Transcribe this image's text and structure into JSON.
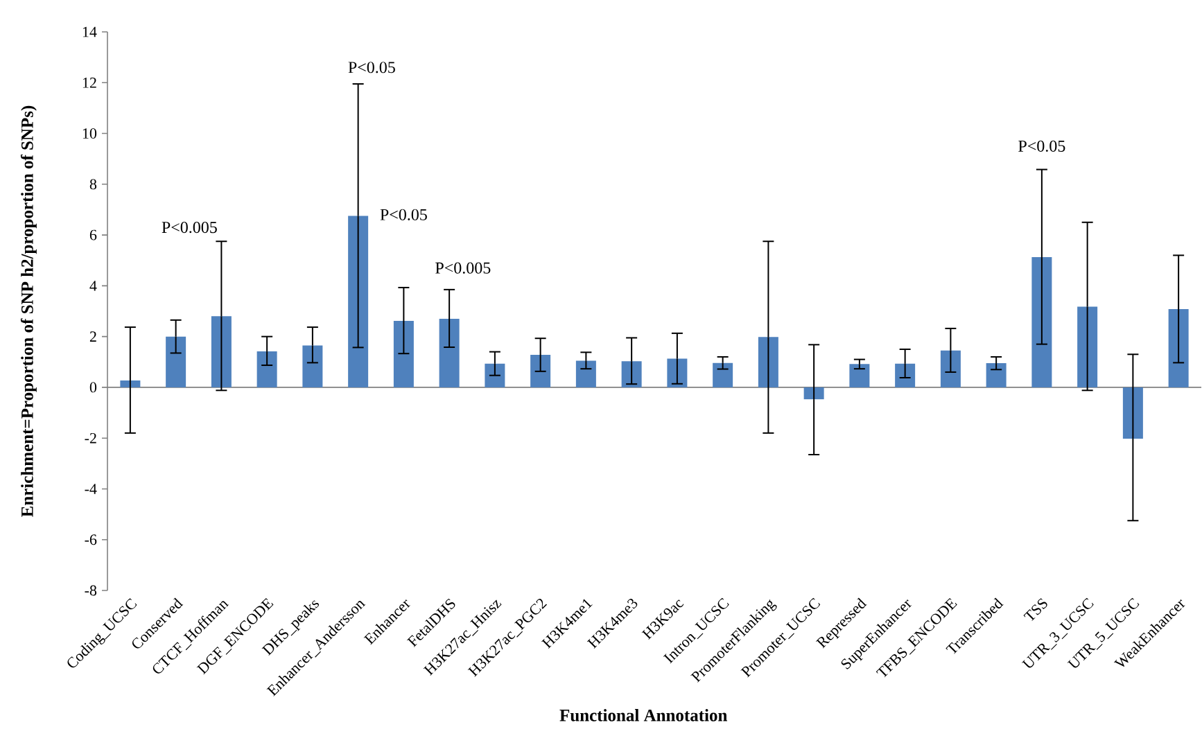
{
  "chart_data": {
    "type": "bar",
    "xlabel": "Functional Annotation",
    "ylabel": "Enrichment=Proportion of SNP h2/proportion of SNPs)",
    "categories": [
      "Coding_UCSC",
      "Conserved",
      "CTCF_Hoffman",
      "DGF_ENCODE",
      "DHS_peaks",
      "Enhancer_Andersson",
      "Enhancer",
      "FetalDHS",
      "H3K27ac_Hnisz",
      "H3K27ac_PGC2",
      "H3K4me1",
      "H3K4me3",
      "H3K9ac",
      "Intron_UCSC",
      "PromoterFlanking",
      "Promoter_UCSC",
      "Repressed",
      "SuperEnhancer",
      "TFBS_ENCODE",
      "Transcribed",
      "TSS",
      "UTR_3_UCSC",
      "UTR_5_UCSC",
      "WeakEnhancer"
    ],
    "values": [
      0.27,
      2.0,
      2.8,
      1.42,
      1.65,
      6.75,
      2.62,
      2.7,
      0.93,
      1.28,
      1.05,
      1.03,
      1.13,
      0.96,
      1.98,
      -0.47,
      0.92,
      0.93,
      1.45,
      0.95,
      5.13,
      3.18,
      -2.02,
      3.08
    ],
    "errors": [
      [
        -1.8,
        2.37
      ],
      [
        1.35,
        2.65
      ],
      [
        -0.12,
        5.75
      ],
      [
        0.87,
        2.0
      ],
      [
        0.97,
        2.37
      ],
      [
        1.57,
        11.95
      ],
      [
        1.33,
        3.93
      ],
      [
        1.58,
        3.85
      ],
      [
        0.47,
        1.4
      ],
      [
        0.63,
        1.93
      ],
      [
        0.73,
        1.38
      ],
      [
        0.13,
        1.95
      ],
      [
        0.14,
        2.13
      ],
      [
        0.72,
        1.2
      ],
      [
        -1.8,
        5.75
      ],
      [
        -2.65,
        1.68
      ],
      [
        0.73,
        1.1
      ],
      [
        0.38,
        1.5
      ],
      [
        0.6,
        2.32
      ],
      [
        0.7,
        1.2
      ],
      [
        1.7,
        8.58
      ],
      [
        -0.12,
        6.5
      ],
      [
        -5.25,
        1.3
      ],
      [
        0.97,
        5.2
      ]
    ],
    "color": "#4f81bd",
    "ylim": [
      -8,
      14
    ],
    "yticks": [
      -8,
      -6,
      -4,
      -2,
      0,
      2,
      4,
      6,
      8,
      10,
      12,
      14
    ],
    "annotations": [
      "P<0.005",
      "P<0.05",
      "P<0.05",
      "P<0.005",
      "P<0.05"
    ]
  }
}
